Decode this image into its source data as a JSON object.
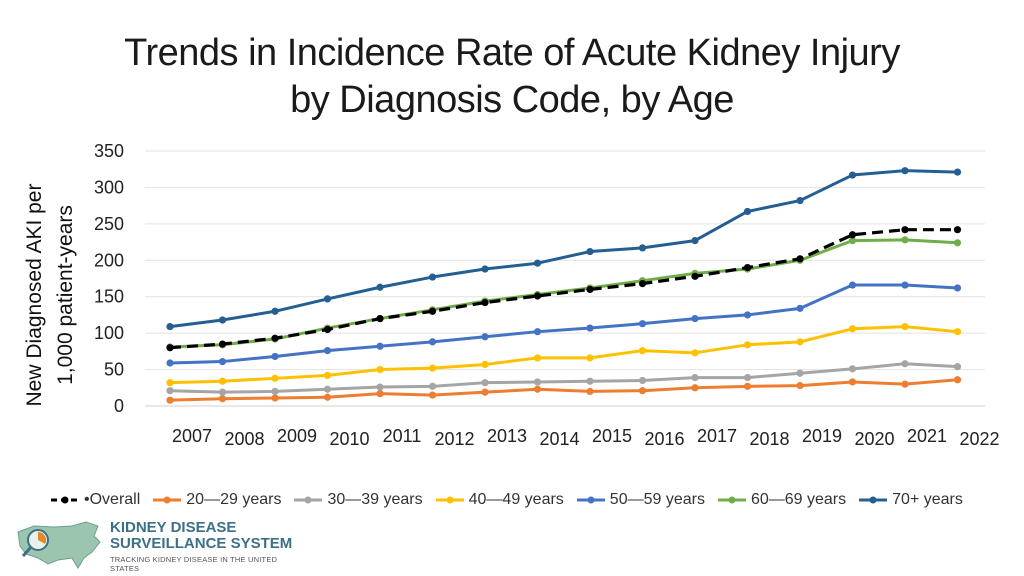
{
  "chart_data": {
    "type": "line",
    "title_line1": "Trends in Incidence Rate of Acute Kidney Injury",
    "title_line2": "by Diagnosis Code, by Age",
    "ylabel_line1": "New Diagnosed AKI per",
    "ylabel_line2": "1,000 patient-years",
    "ylim": [
      0,
      350
    ],
    "yticks": [
      0,
      50,
      100,
      150,
      200,
      250,
      300,
      350
    ],
    "grid": true,
    "legend_position": "bottom",
    "categories": [
      "2007",
      "2008",
      "2009",
      "2010",
      "2011",
      "2012",
      "2013",
      "2014",
      "2015",
      "2016",
      "2017",
      "2018",
      "2019",
      "2020",
      "2021",
      "2022"
    ],
    "series": [
      {
        "name": "Overall",
        "color": "#000000",
        "dashed": true,
        "values": [
          80,
          85,
          93,
          105,
          120,
          130,
          142,
          151,
          160,
          168,
          178,
          190,
          202,
          235,
          242,
          242
        ]
      },
      {
        "name": "20—29 years",
        "color": "#ED7D31",
        "values": [
          8,
          10,
          11,
          12,
          17,
          15,
          19,
          23,
          20,
          21,
          25,
          27,
          28,
          33,
          30,
          36
        ]
      },
      {
        "name": "30—39 years",
        "color": "#A5A5A5",
        "values": [
          21,
          19,
          20,
          23,
          26,
          27,
          32,
          33,
          34,
          35,
          39,
          39,
          45,
          51,
          58,
          54
        ]
      },
      {
        "name": "40—49 years",
        "color": "#FFC000",
        "values": [
          32,
          34,
          38,
          42,
          50,
          52,
          57,
          66,
          66,
          76,
          73,
          84,
          88,
          106,
          109,
          102
        ]
      },
      {
        "name": "50—59 years",
        "color": "#4472C4",
        "values": [
          59,
          61,
          68,
          76,
          82,
          88,
          95,
          102,
          107,
          113,
          120,
          125,
          134,
          166,
          166,
          162
        ]
      },
      {
        "name": "60—69 years",
        "color": "#70AD47",
        "values": [
          81,
          84,
          92,
          107,
          120,
          132,
          144,
          153,
          162,
          172,
          182,
          188,
          200,
          227,
          228,
          224
        ]
      },
      {
        "name": "70+ years",
        "color": "#255E91",
        "values": [
          109,
          118,
          130,
          147,
          163,
          177,
          188,
          196,
          212,
          217,
          227,
          267,
          282,
          317,
          323,
          321
        ]
      }
    ]
  },
  "legend_labels": [
    "•Overall",
    "20—29 years",
    "30—39 years",
    "40—49 years",
    "50—59 years",
    "60—69 years",
    "70+ years"
  ],
  "logo": {
    "line1": "KIDNEY DISEASE",
    "line2": "SURVEILLANCE SYSTEM",
    "line3": "TRACKING KIDNEY DISEASE IN THE UNITED STATES"
  }
}
